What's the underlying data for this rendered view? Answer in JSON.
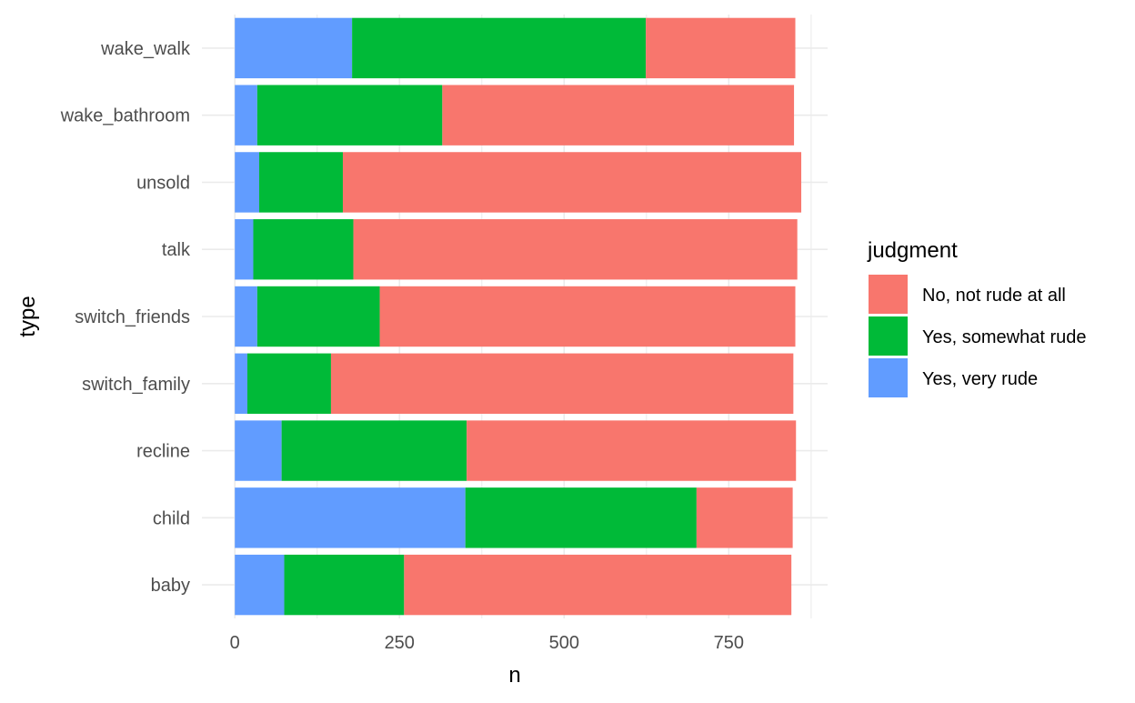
{
  "chart_data": {
    "type": "bar",
    "orientation": "horizontal",
    "stacked": true,
    "xlabel": "n",
    "ylabel": "type",
    "xlim": [
      -50,
      900
    ],
    "x_ticks": [
      0,
      250,
      500,
      750
    ],
    "x_tick_labels": [
      "0",
      "250",
      "500",
      "750"
    ],
    "grid": true,
    "legend_position": "right",
    "legend_title": "judgment",
    "categories": [
      "wake_walk",
      "wake_bathroom",
      "unsold",
      "talk",
      "switch_friends",
      "switch_family",
      "recline",
      "child",
      "baby"
    ],
    "stack_order_from_zero": [
      "Yes, very rude",
      "Yes, somewhat rude",
      "No, not rude at all"
    ],
    "series": [
      {
        "name": "No, not rude at all",
        "color": "#F8766D",
        "values": [
          227,
          534,
          696,
          674,
          631,
          702,
          500,
          146,
          588
        ]
      },
      {
        "name": "Yes, somewhat rude",
        "color": "#00BA38",
        "values": [
          446,
          281,
          127,
          152,
          186,
          127,
          281,
          351,
          182
        ]
      },
      {
        "name": "Yes, very rude",
        "color": "#619CFF",
        "values": [
          178,
          34,
          37,
          28,
          34,
          19,
          71,
          350,
          75
        ]
      }
    ]
  }
}
